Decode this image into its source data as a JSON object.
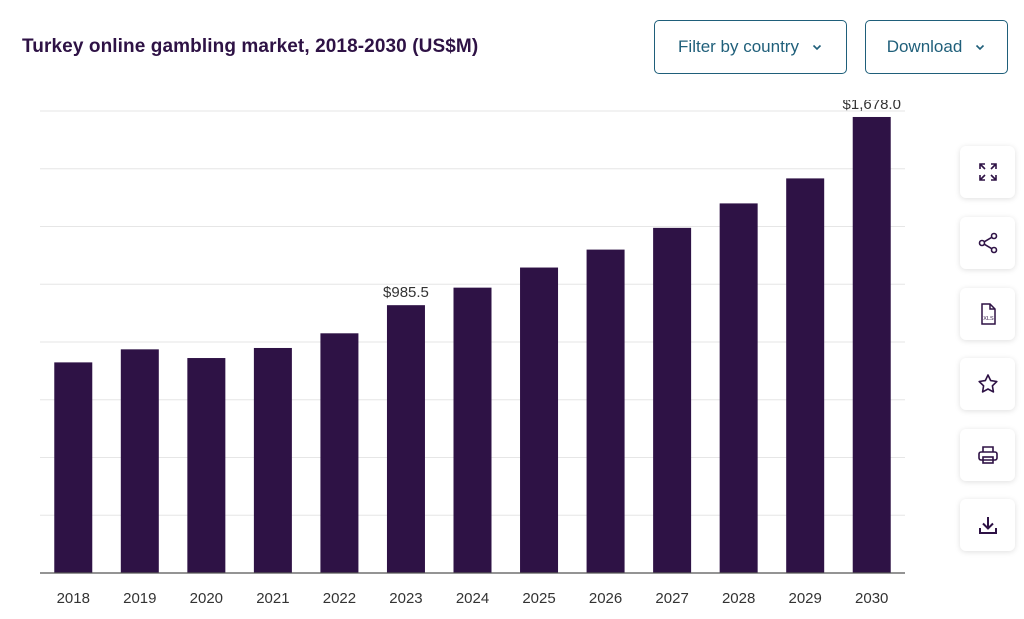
{
  "header": {
    "title": "Turkey online gambling market, 2018-2030 (US$M)",
    "filter_label": "Filter by country",
    "download_label": "Download"
  },
  "sidebar_icons": [
    "expand-icon",
    "share-icon",
    "xls-file-icon",
    "star-icon",
    "print-icon",
    "download-icon"
  ],
  "colors": {
    "bar": "#2e1245",
    "title": "#2e1245",
    "button": "#1f5f7a",
    "grid": "#e6e6e6"
  },
  "chart_data": {
    "type": "bar",
    "categories": [
      "2018",
      "2019",
      "2020",
      "2021",
      "2022",
      "2023",
      "2024",
      "2025",
      "2026",
      "2027",
      "2028",
      "2029",
      "2030"
    ],
    "values": [
      775.0,
      823.0,
      791.0,
      828.0,
      882.0,
      985.5,
      1050.0,
      1124.0,
      1190.0,
      1270.0,
      1360.0,
      1452.0,
      1678.0
    ],
    "ylim": [
      0,
      1700
    ],
    "grid": true,
    "data_labels": [
      {
        "index": 5,
        "text": "$985.5"
      },
      {
        "index": 12,
        "text": "$1,678.0"
      }
    ]
  }
}
